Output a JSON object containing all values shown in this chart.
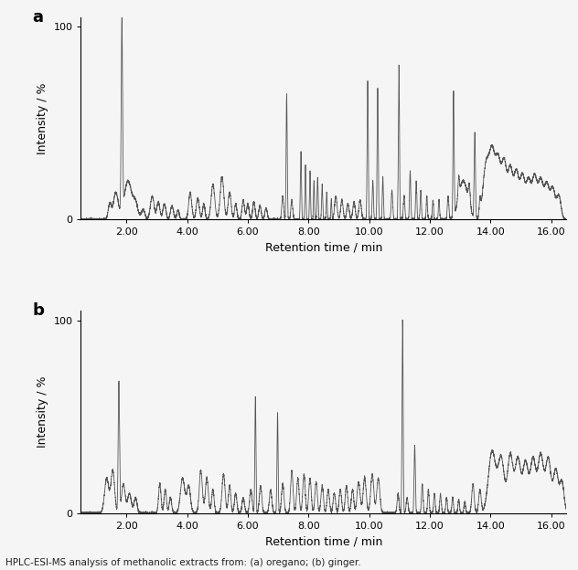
{
  "xlim": [
    0.5,
    16.5
  ],
  "ylim_a": [
    0,
    105
  ],
  "ylim_b": [
    0,
    105
  ],
  "xticks": [
    2.0,
    4.0,
    6.0,
    8.0,
    10.0,
    12.0,
    14.0,
    16.0
  ],
  "yticks": [
    0,
    100
  ],
  "xlabel": "Retention time / min",
  "ylabel": "Intensity / %",
  "label_a": "a",
  "label_b": "b",
  "caption": "HPLC-ESI-MS analysis of methanolic extracts from: (a) oregano; (b) ginger.",
  "line_color": "#555555",
  "bg_color": "#f5f5f5",
  "figsize": [
    6.32,
    6.24
  ],
  "dpi": 100
}
